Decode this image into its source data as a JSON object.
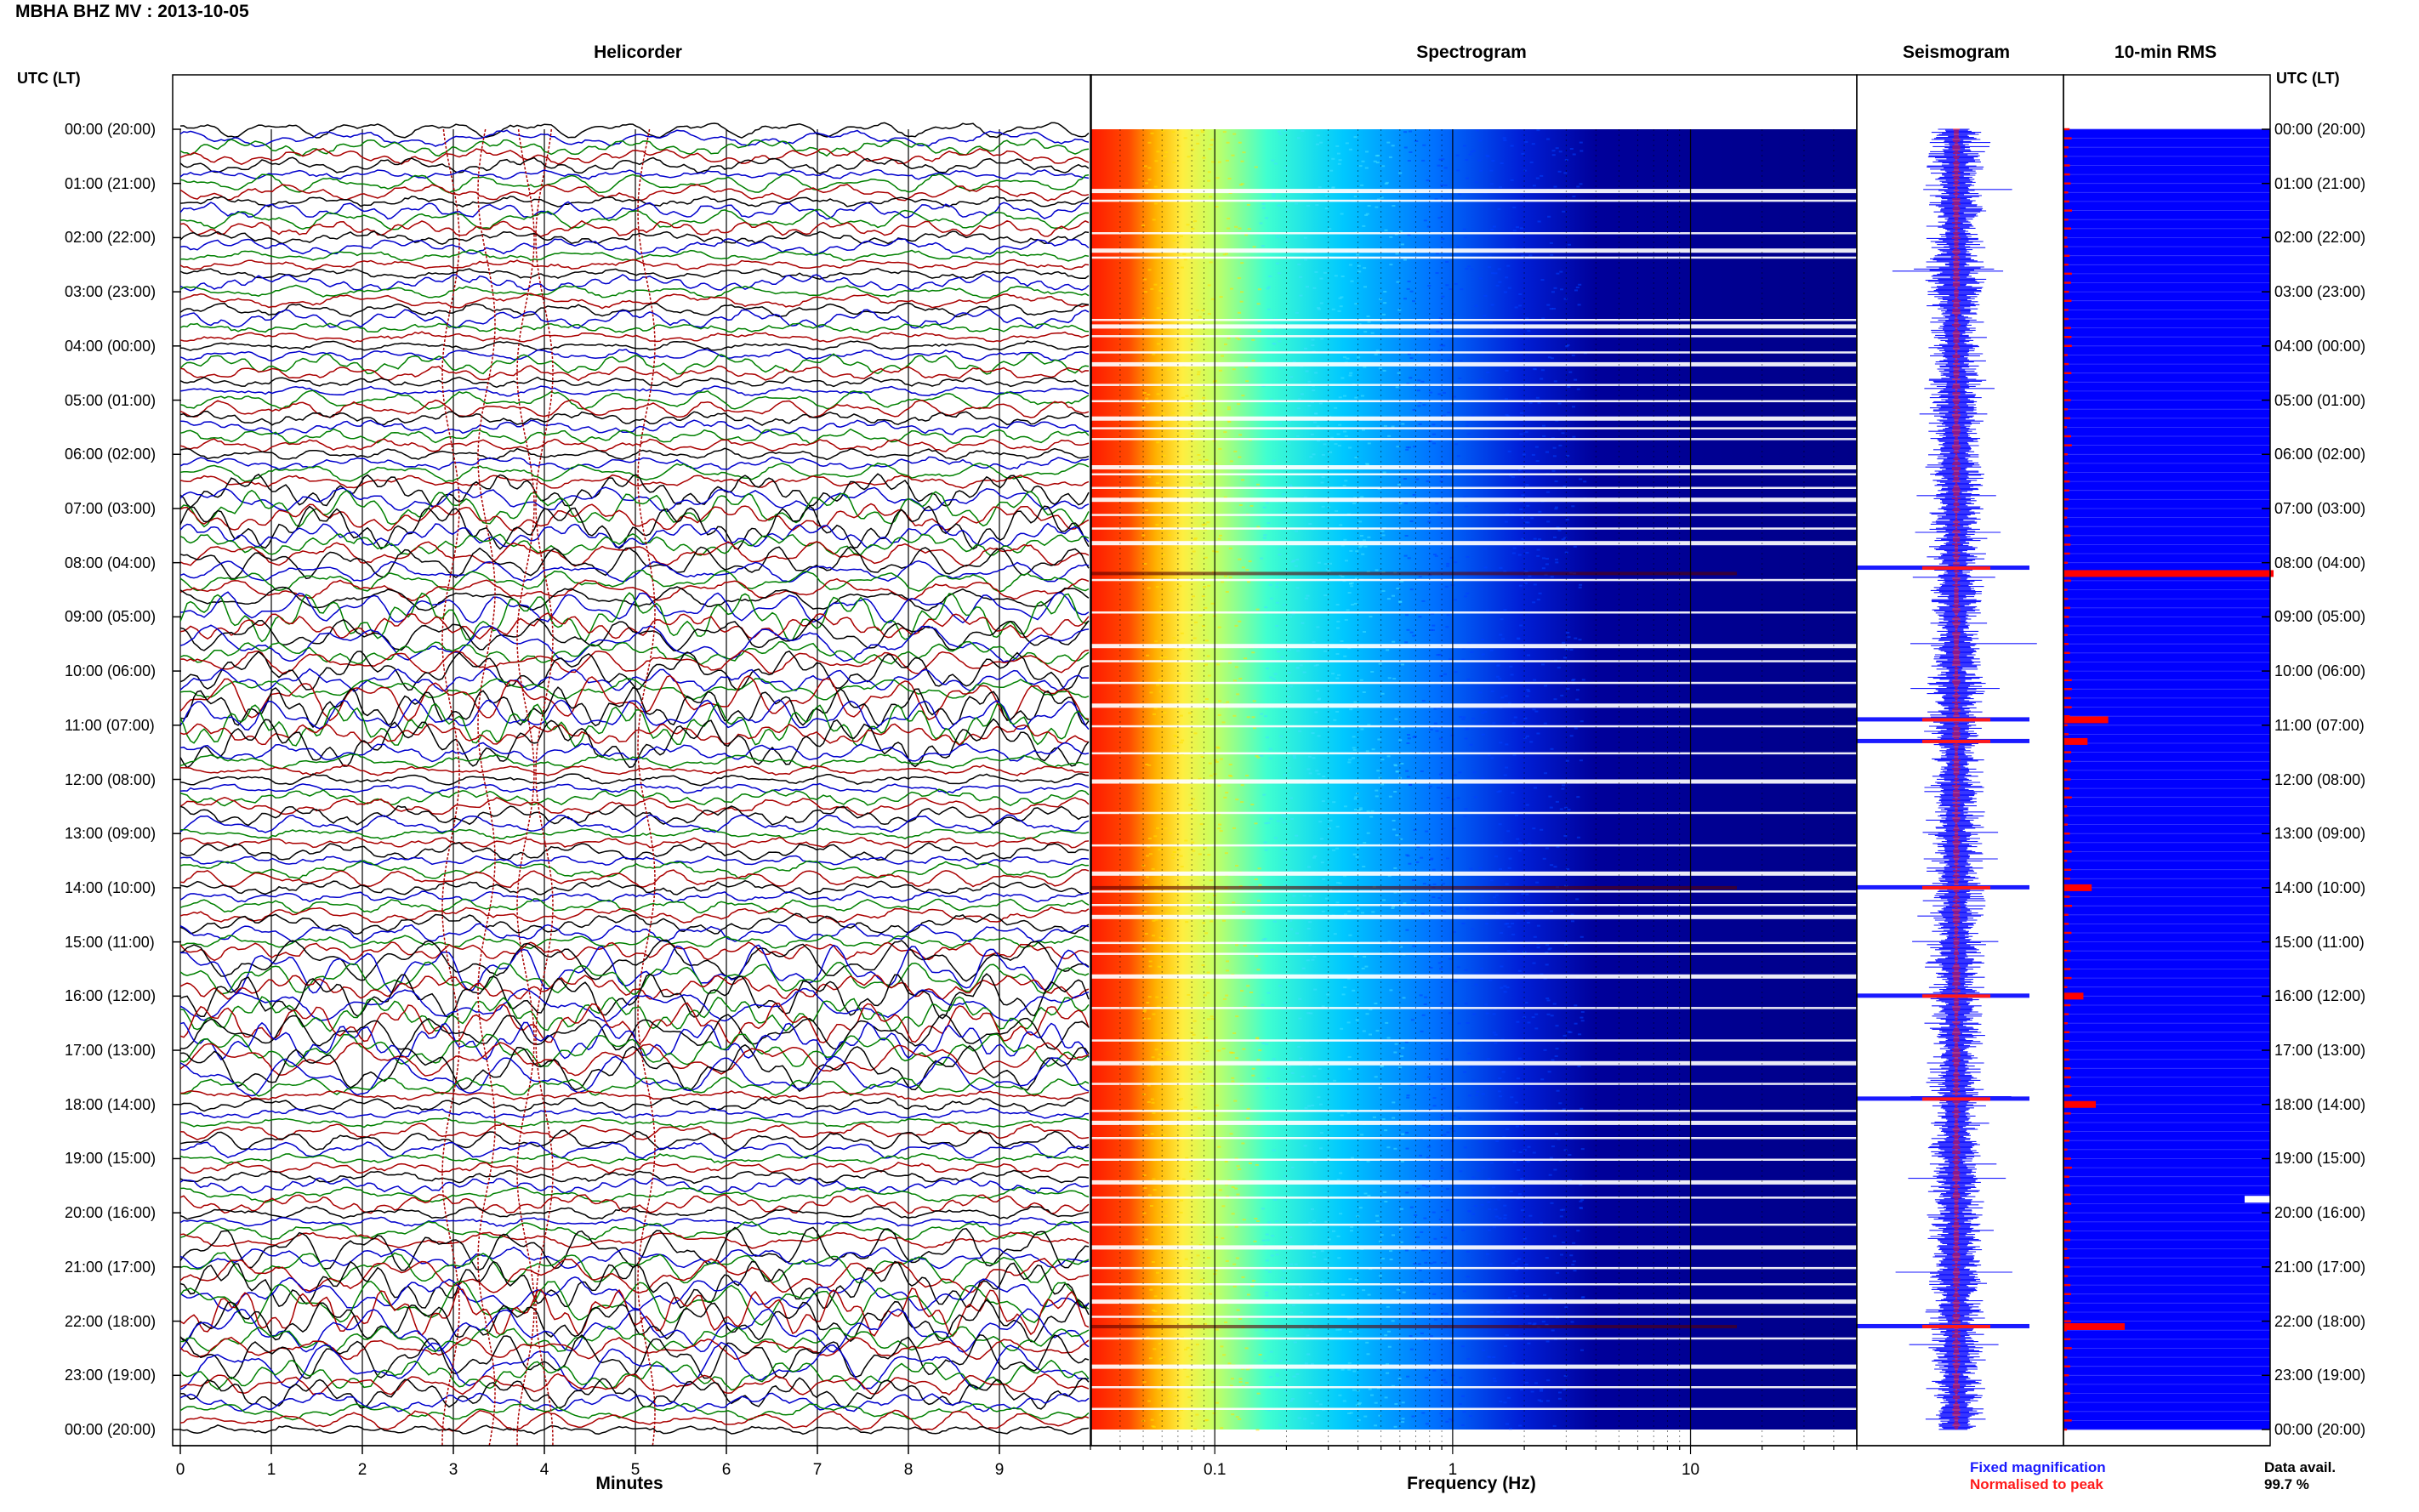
{
  "figure": {
    "title": "MBHA BHZ MV : 2013-10-05",
    "time_axis_header_left": "UTC (LT)",
    "time_axis_header_right": "UTC (LT)"
  },
  "legend": {
    "fixed": "Fixed magnification",
    "normalised": "Normalised to peak",
    "data_avail_label": "Data avail.",
    "data_avail_value": "99.7 %",
    "colors": {
      "fixed": "#1a1aff",
      "normalised": "#ff1a1a"
    }
  },
  "chart_data": [
    {
      "type": "line",
      "panel": "helicorder",
      "title": "Helicorder",
      "xlabel": "Minutes",
      "x_ticks": [
        "0",
        "1",
        "2",
        "3",
        "4",
        "5",
        "6",
        "7",
        "8",
        "9"
      ],
      "xlim": [
        0,
        10
      ],
      "rows": 145,
      "row_minutes": 10,
      "trace_colors": [
        "#000000",
        "#0000cc",
        "#008000",
        "#aa0000"
      ],
      "grid": true
    },
    {
      "type": "heatmap",
      "panel": "spectrogram",
      "title": "Spectrogram",
      "xlabel": "Frequency (Hz)",
      "x_scale": "log",
      "xlim": [
        0.03,
        50
      ],
      "x_ticks": [
        "0.1",
        "1",
        "10"
      ],
      "colormap": [
        "#00007f",
        "#0000ff",
        "#00ffff",
        "#ffff00",
        "#ff0000",
        "#7f0000"
      ]
    },
    {
      "type": "bar",
      "panel": "seismogram",
      "title": "Seismogram",
      "orientation": "horizontal",
      "series": [
        {
          "name": "Fixed magnification",
          "color": "#1a1aff"
        },
        {
          "name": "Normalised to peak",
          "color": "#ff1a1a"
        }
      ],
      "spikes_at_hours": [
        8.1,
        10.9,
        11.3,
        14.0,
        16.0,
        17.9,
        22.1
      ]
    },
    {
      "type": "bar",
      "panel": "rms",
      "title": "10-min RMS",
      "orientation": "horizontal",
      "bar_color": "#0000ff",
      "peak_color": "#ff0000",
      "peaks": [
        {
          "hour": 8.2,
          "level": 1.0
        },
        {
          "hour": 10.9,
          "level": 0.2
        },
        {
          "hour": 11.3,
          "level": 0.1
        },
        {
          "hour": 14.0,
          "level": 0.12
        },
        {
          "hour": 16.0,
          "level": 0.08
        },
        {
          "hour": 18.0,
          "level": 0.14
        },
        {
          "hour": 22.1,
          "level": 0.28
        }
      ],
      "data_gap_hour": 19.75
    }
  ],
  "time_labels": [
    "00:00 (20:00)",
    "01:00 (21:00)",
    "02:00 (22:00)",
    "03:00 (23:00)",
    "04:00 (00:00)",
    "05:00 (01:00)",
    "06:00 (02:00)",
    "07:00 (03:00)",
    "08:00 (04:00)",
    "09:00 (05:00)",
    "10:00 (06:00)",
    "11:00 (07:00)",
    "12:00 (08:00)",
    "13:00 (09:00)",
    "14:00 (10:00)",
    "15:00 (11:00)",
    "16:00 (12:00)",
    "17:00 (13:00)",
    "18:00 (14:00)",
    "19:00 (15:00)",
    "20:00 (16:00)",
    "21:00 (17:00)",
    "22:00 (18:00)",
    "23:00 (19:00)",
    "00:00 (20:00)"
  ]
}
